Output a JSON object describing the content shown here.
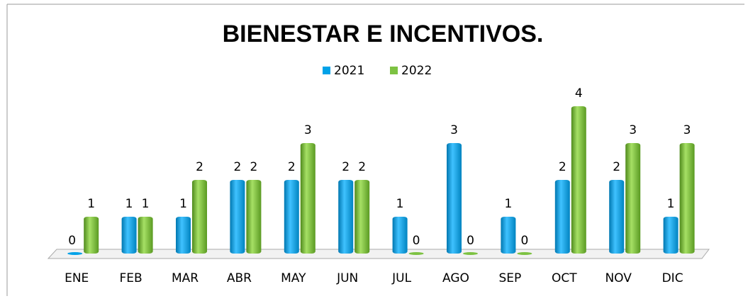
{
  "chart_data": {
    "type": "bar",
    "title": "BIENESTAR E INCENTIVOS.",
    "categories": [
      "ENE",
      "FEB",
      "MAR",
      "ABR",
      "MAY",
      "JUN",
      "JUL",
      "AGO",
      "SEP",
      "OCT",
      "NOV",
      "DIC"
    ],
    "series": [
      {
        "name": "2021",
        "color": "#00a2e8",
        "values": [
          0,
          1,
          1,
          2,
          2,
          2,
          1,
          3,
          1,
          2,
          2,
          1
        ]
      },
      {
        "name": "2022",
        "color": "#7dc242",
        "values": [
          1,
          1,
          2,
          2,
          3,
          2,
          0,
          0,
          0,
          4,
          3,
          3
        ]
      }
    ],
    "legend": "top"
  }
}
